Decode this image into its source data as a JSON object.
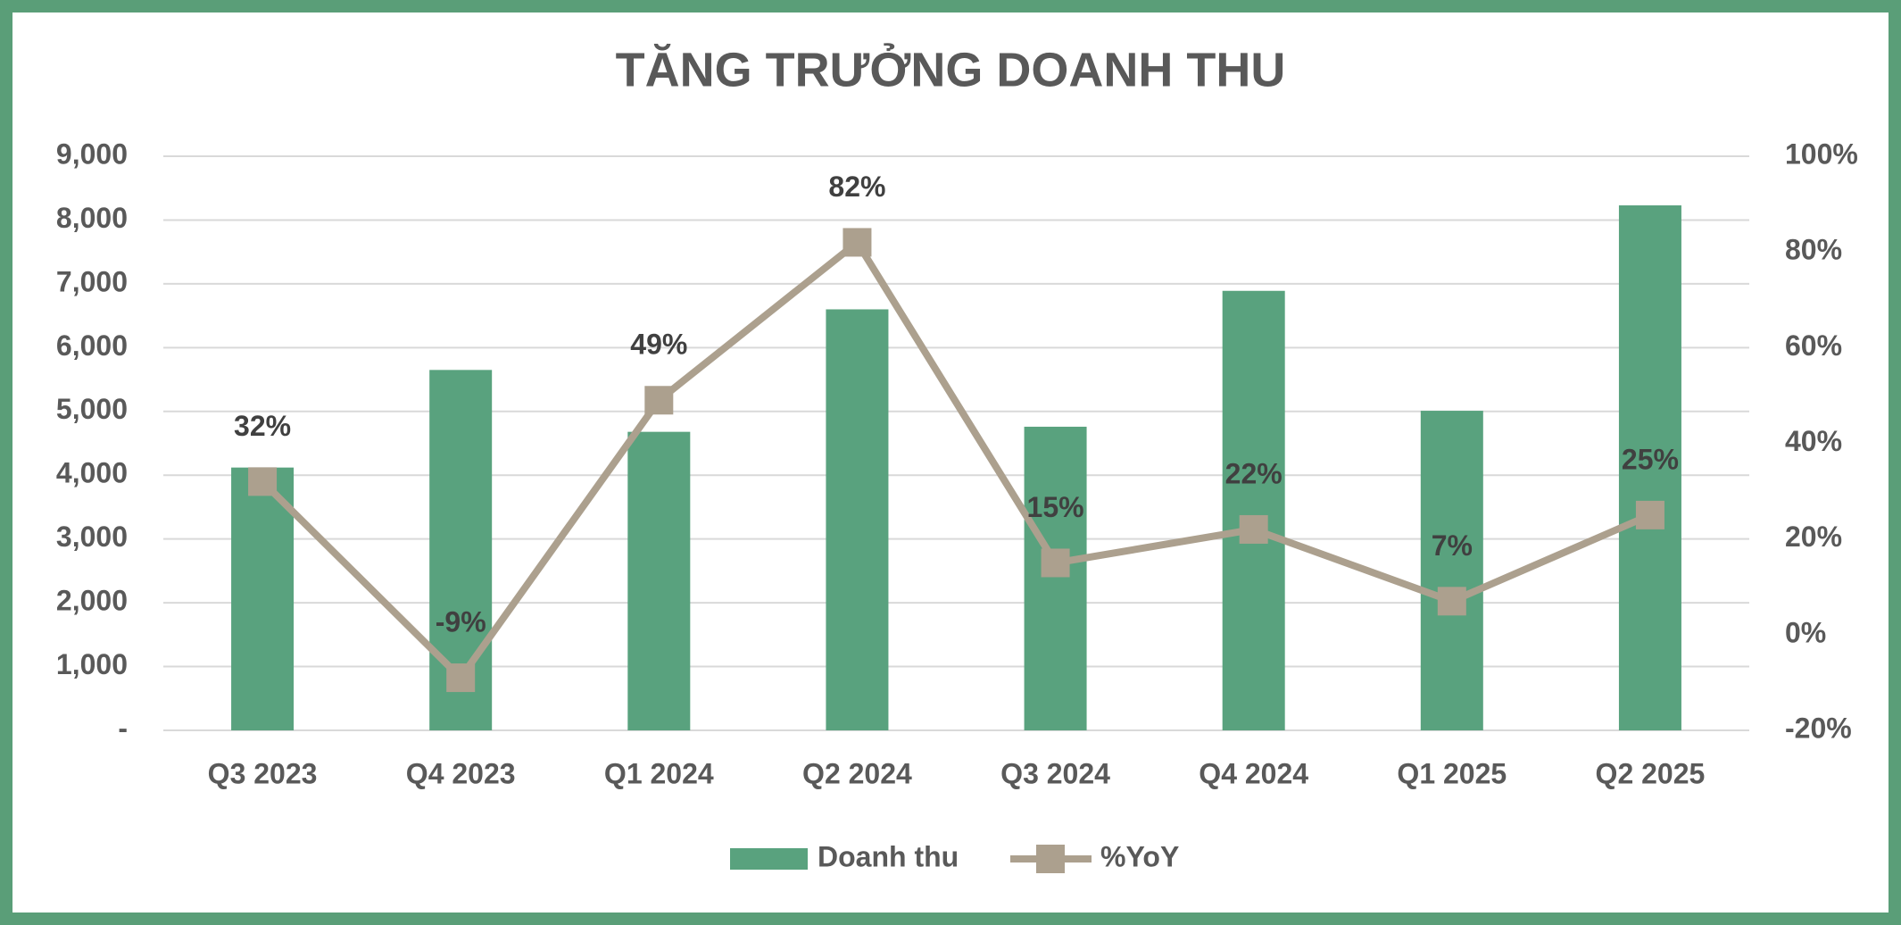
{
  "chart_data": {
    "type": "bar",
    "title": "TĂNG TRƯỞNG DOANH THU",
    "categories": [
      "Q3 2023",
      "Q4 2023",
      "Q1 2024",
      "Q2 2024",
      "Q3 2024",
      "Q4 2024",
      "Q1 2025",
      "Q2 2025"
    ],
    "series": [
      {
        "name": "Doanh thu",
        "type": "bar",
        "color": "#59a27e",
        "values": [
          4120,
          5650,
          4680,
          6600,
          4760,
          6890,
          5010,
          8230
        ]
      },
      {
        "name": "%YoY",
        "type": "line",
        "axis": "y2",
        "color": "#aca08e",
        "values": [
          32,
          -9,
          49,
          82,
          15,
          22,
          7,
          25
        ],
        "value_labels": [
          "32%",
          "-9%",
          "49%",
          "82%",
          "15%",
          "22%",
          "7%",
          "25%"
        ]
      }
    ],
    "ylim": [
      0,
      9000
    ],
    "yticks": [
      {
        "value": 0,
        "label": "-"
      },
      {
        "value": 1000,
        "label": "1,000"
      },
      {
        "value": 2000,
        "label": "2,000"
      },
      {
        "value": 3000,
        "label": "3,000"
      },
      {
        "value": 4000,
        "label": "4,000"
      },
      {
        "value": 5000,
        "label": "5,000"
      },
      {
        "value": 6000,
        "label": "6,000"
      },
      {
        "value": 7000,
        "label": "7,000"
      },
      {
        "value": 8000,
        "label": "8,000"
      },
      {
        "value": 9000,
        "label": "9,000"
      }
    ],
    "y2lim": [
      -20,
      100
    ],
    "y2ticks": [
      {
        "value": -20,
        "label": "-20%"
      },
      {
        "value": 0,
        "label": "0%"
      },
      {
        "value": 20,
        "label": "20%"
      },
      {
        "value": 40,
        "label": "40%"
      },
      {
        "value": 60,
        "label": "60%"
      },
      {
        "value": 80,
        "label": "80%"
      },
      {
        "value": 100,
        "label": "100%"
      }
    ],
    "grid": true,
    "legend": "bottom"
  }
}
